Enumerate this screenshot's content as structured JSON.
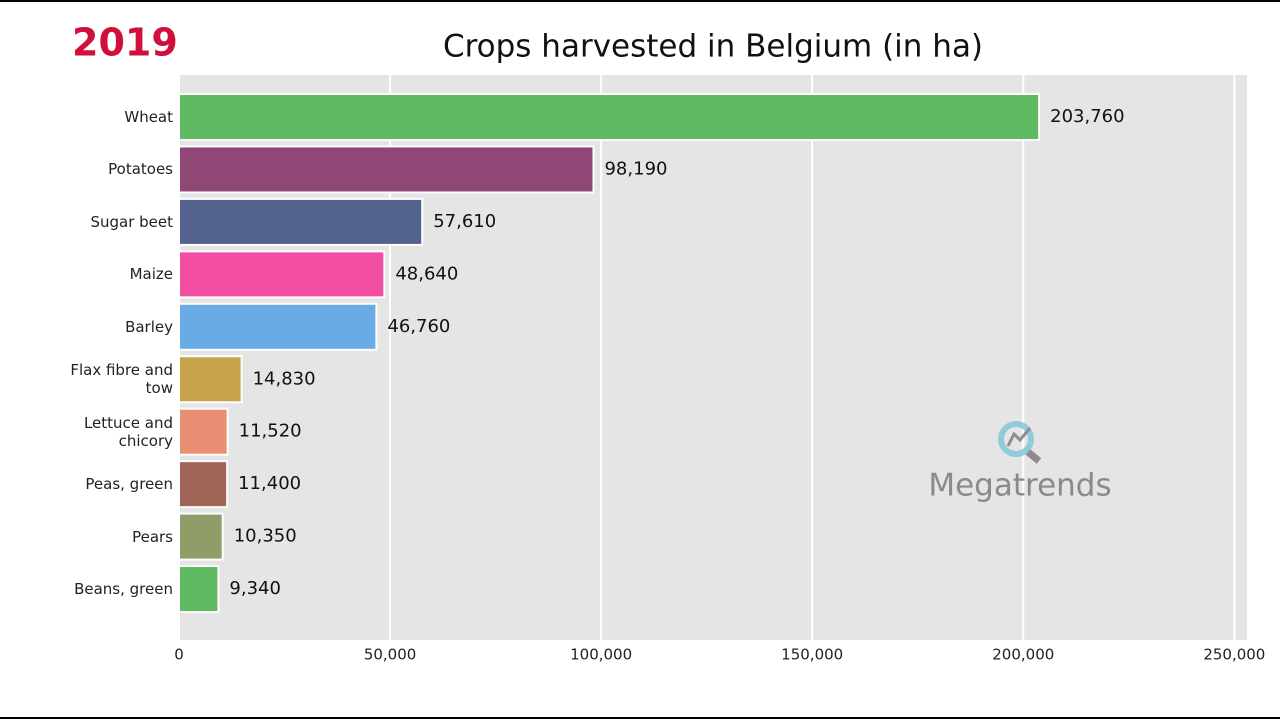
{
  "chart_data": {
    "type": "bar",
    "orientation": "horizontal",
    "title": "Crops harvested in Belgium (in ha)",
    "year": "2019",
    "watermark": "Megatrends",
    "categories": [
      "Wheat",
      "Potatoes",
      "Sugar beet",
      "Maize",
      "Barley",
      "Flax fibre and\ntow",
      "Lettuce and\nchicory",
      "Peas, green",
      "Pears",
      "Beans, green"
    ],
    "values": [
      203760,
      98190,
      57610,
      48640,
      46760,
      14830,
      11520,
      11400,
      10350,
      9340
    ],
    "value_labels": [
      "203,760",
      "98,190",
      "57,610",
      "48,640",
      "46,760",
      "14,830",
      "11,520",
      "11,400",
      "10,350",
      "9,340"
    ],
    "colors": [
      "#58b85a",
      "#8b4070",
      "#4b5b89",
      "#f347a0",
      "#63a9e5",
      "#c6a043",
      "#ea8b6e",
      "#9d5f50",
      "#8c9a63",
      "#58b85a"
    ],
    "xlim": [
      0,
      253000
    ],
    "xticks": [
      0,
      {
        "value": 50000,
        "label": "50,000"
      },
      {
        "value": 100000,
        "label": "100,000"
      },
      {
        "value": 150000,
        "label": "150,000"
      },
      {
        "value": 200000,
        "label": "200,000"
      },
      {
        "value": 250000,
        "label": "250,000"
      }
    ],
    "grid": true
  }
}
